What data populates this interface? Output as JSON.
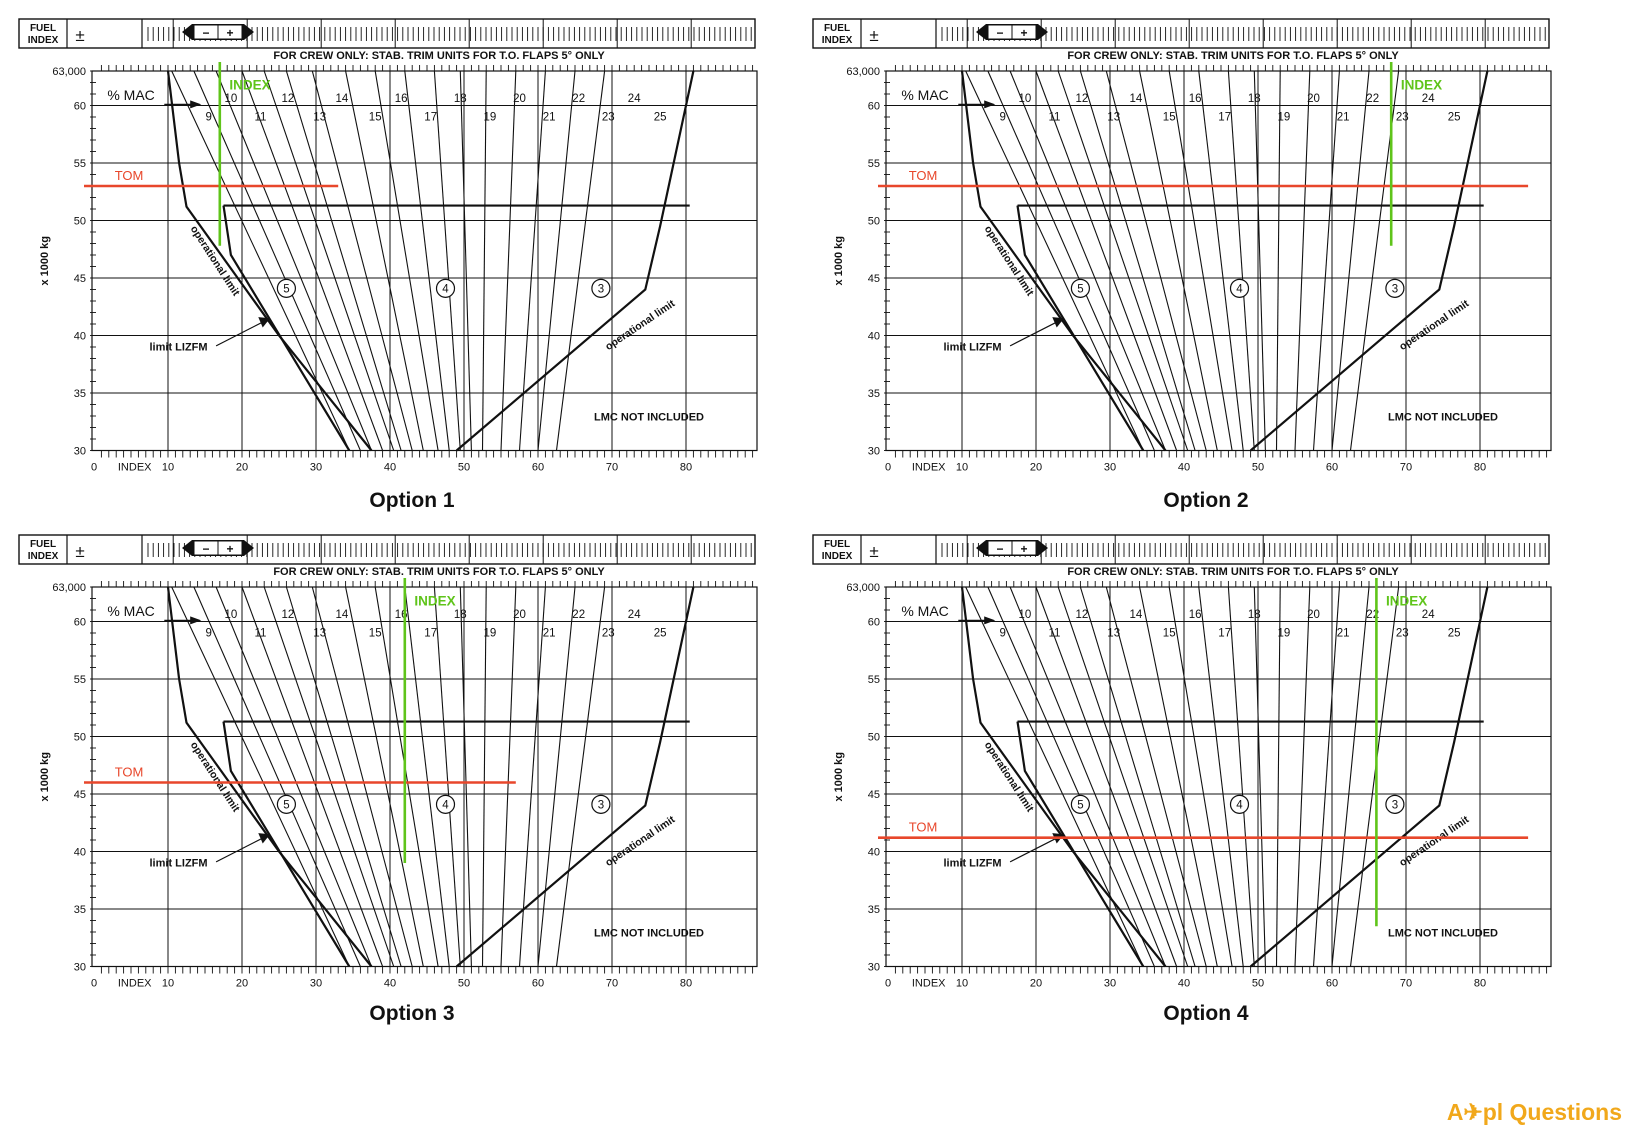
{
  "labels": {
    "fuel_index_1": "FUEL",
    "fuel_index_2": "INDEX",
    "plus_minus": "±",
    "crew_only": "FOR CREW ONLY: STAB. TRIM UNITS FOR T.O. FLAPS 5° ONLY",
    "y_axis": "x 1000 kg",
    "index_axis": "INDEX",
    "mac": "% MAC",
    "index_line": "INDEX",
    "tom": "TOM",
    "op_limit": "operational limit",
    "lizfm": "limit LIZFM",
    "lmc": "LMC NOT INCLUDED",
    "minus": "−",
    "plus": "+"
  },
  "y_ticks": [
    "63,000",
    "60",
    "55",
    "50",
    "45",
    "40",
    "35",
    "30"
  ],
  "x_ticks": [
    "0",
    "10",
    "20",
    "30",
    "40",
    "50",
    "60",
    "70",
    "80"
  ],
  "trim_values": [
    "9",
    "10",
    "11",
    "12",
    "13",
    "14",
    "15",
    "16",
    "17",
    "18",
    "19",
    "20",
    "21",
    "22",
    "23",
    "24",
    "25"
  ],
  "circled_zones": [
    "5",
    "4",
    "3"
  ],
  "colors": {
    "tom": "#e8472b",
    "index": "#5fc41a",
    "grid": "#111111",
    "brand": "#f1a81b"
  },
  "chart_data": [
    {
      "type": "diagram",
      "caption": "Option 1",
      "tom_mass_1000kg": 53,
      "index_line_value": 17
    },
    {
      "type": "diagram",
      "caption": "Option 2",
      "tom_mass_1000kg": 53,
      "index_line_value": 68
    },
    {
      "type": "diagram",
      "caption": "Option 3",
      "tom_mass_1000kg": 46,
      "index_line_value": 42
    },
    {
      "type": "diagram",
      "caption": "Option 4",
      "tom_mass_1000kg": 41.2,
      "index_line_value": 66
    }
  ],
  "brand": "A✈pl Questions"
}
